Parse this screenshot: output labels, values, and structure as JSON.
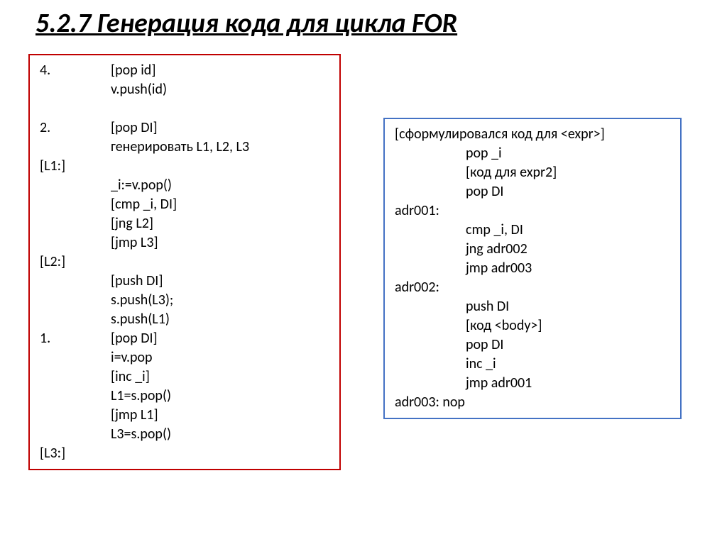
{
  "title": "5.2.7 Генерация кода для цикла FOR",
  "left": {
    "rows": [
      {
        "label": "4.",
        "text": "[pop id]"
      },
      {
        "label": "",
        "text": "v.push(id)"
      },
      {
        "label": "",
        "text": "",
        "empty": true
      },
      {
        "label": "2.",
        "text": "[pop DI]"
      },
      {
        "label": "",
        "text": "генерировать L1, L2, L3"
      },
      {
        "label": "[L1:]",
        "text": ""
      },
      {
        "label": "",
        "text": "_i:=v.pop()"
      },
      {
        "label": "",
        "text": "[cmp _i, DI]"
      },
      {
        "label": "",
        "text": "[jng L2]"
      },
      {
        "label": "",
        "text": "[jmp L3]"
      },
      {
        "label": "[L2:]",
        "text": ""
      },
      {
        "label": "",
        "text": "[push DI]"
      },
      {
        "label": "",
        "text": "s.push(L3);"
      },
      {
        "label": "",
        "text": "s.push(L1)"
      },
      {
        "label": "1.",
        "text": "[pop DI]"
      },
      {
        "label": "",
        "text": "i=v.pop"
      },
      {
        "label": "",
        "text": "[inc _i]"
      },
      {
        "label": "",
        "text": "L1=s.pop()"
      },
      {
        "label": "",
        "text": "[jmp L1]"
      },
      {
        "label": "",
        "text": "L3=s.pop()"
      },
      {
        "label": "[L3:]",
        "text": ""
      }
    ]
  },
  "right": {
    "rows": [
      {
        "label": "",
        "text": "[сформулировался код для <expr>]",
        "full": true
      },
      {
        "label": "",
        "text": "pop _i"
      },
      {
        "label": "",
        "text": "[код для expr2]"
      },
      {
        "label": "",
        "text": "pop DI"
      },
      {
        "label": "adr001:",
        "text": ""
      },
      {
        "label": "",
        "text": "cmp _i, DI"
      },
      {
        "label": "",
        "text": "jng adr002"
      },
      {
        "label": "",
        "text": "jmp adr003"
      },
      {
        "label": "adr002:",
        "text": ""
      },
      {
        "label": "",
        "text": "push DI"
      },
      {
        "label": "",
        "text": "[код <body>]"
      },
      {
        "label": "",
        "text": "pop DI"
      },
      {
        "label": "",
        "text": "inc _i"
      },
      {
        "label": "",
        "text": "jmp adr001"
      },
      {
        "label": "",
        "text": "adr003: nop",
        "full": true
      }
    ]
  },
  "colors": {
    "left_border": "#c00000",
    "right_border": "#4472c4",
    "text": "#000000",
    "background": "#ffffff"
  }
}
